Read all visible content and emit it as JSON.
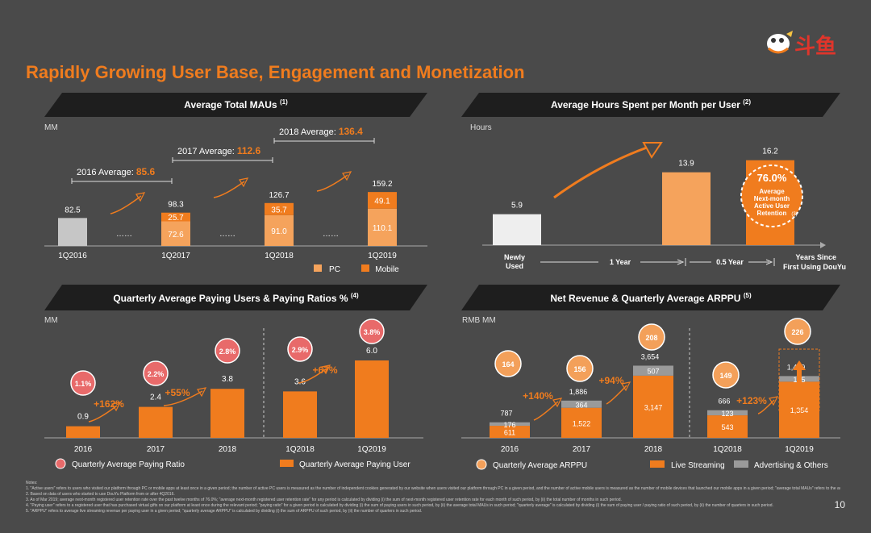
{
  "title": "Rapidly Growing User Base, Engagement and Monetization",
  "logo_text": "斗鱼",
  "page_number": "10",
  "colors": {
    "orange": "#f07c1e",
    "light_orange": "#f5a35c",
    "gray": "#c6c6c6",
    "red_circle": "#e86a6a",
    "bubble_orange": "#f3a05a"
  },
  "panels": {
    "mau": {
      "header": "Average Total MAUs",
      "note": "(1)",
      "unit": "MM"
    },
    "hours": {
      "header": "Average Hours Spent per Month per User",
      "note": "(2)",
      "unit": "Hours"
    },
    "paying": {
      "header": "Quarterly Average Paying Users & Paying Ratios %",
      "note": "(4)",
      "unit": "MM"
    },
    "revenue": {
      "header": "Net Revenue & Quarterly Average ARPPU",
      "note": "(5)",
      "unit": "RMB MM"
    }
  },
  "chart_data": [
    {
      "id": "mau",
      "type": "bar",
      "categories": [
        "1Q2016",
        "1Q2017",
        "1Q2018",
        "1Q2019"
      ],
      "totals": [
        "82.5",
        "98.3",
        "126.7",
        "159.2"
      ],
      "series": [
        {
          "name": "PC",
          "values": [
            82.5,
            72.6,
            91.0,
            110.1
          ],
          "labels": [
            "",
            "72.6",
            "91.0",
            "110.1"
          ]
        },
        {
          "name": "Mobile",
          "values": [
            0,
            25.7,
            35.7,
            49.1
          ],
          "labels": [
            "",
            "25.7",
            "35.7",
            "49.1"
          ]
        }
      ],
      "annotations": [
        {
          "text": "2016 Average: ",
          "value": "85.6"
        },
        {
          "text": "2017 Average: ",
          "value": "112.6"
        },
        {
          "text": "2018 Average: ",
          "value": "136.4"
        }
      ],
      "legend": [
        "PC",
        "Mobile"
      ],
      "dots": "……"
    },
    {
      "id": "hours",
      "type": "bar",
      "categories": [
        "Newly Used",
        "1 Year",
        "0.5 Year",
        "Years Since First Using DouYu"
      ],
      "values": [
        5.9,
        13.9,
        16.2
      ],
      "labels": [
        "5.9",
        "13.9",
        "16.2"
      ],
      "callout": {
        "value": "76.0%",
        "text": "Average Next-month Active User Retention",
        "note": "(3)"
      }
    },
    {
      "id": "paying",
      "type": "bar",
      "categories": [
        "2016",
        "2017",
        "2018",
        "1Q2018",
        "1Q2019"
      ],
      "values": [
        0.9,
        2.4,
        3.8,
        3.6,
        6.0
      ],
      "labels": [
        "0.9",
        "2.4",
        "3.8",
        "3.6",
        "6.0"
      ],
      "ratios": [
        "1.1%",
        "2.2%",
        "2.8%",
        "2.9%",
        "3.8%"
      ],
      "growth": [
        "+162%",
        "+55%",
        "+67%"
      ],
      "legend": [
        "Quarterly Average Paying Ratio",
        "Quarterly Average Paying User"
      ]
    },
    {
      "id": "revenue",
      "type": "bar",
      "categories": [
        "2016",
        "2017",
        "2018",
        "1Q2018",
        "1Q2019"
      ],
      "totals": [
        "787",
        "1,886",
        "3,654",
        "666",
        "1,489"
      ],
      "series": [
        {
          "name": "Live Streaming",
          "values": [
            611,
            1522,
            3147,
            543,
            1354
          ],
          "labels": [
            "611",
            "1,522",
            "3,147",
            "543",
            "1,354"
          ]
        },
        {
          "name": "Advertising & Others",
          "values": [
            176,
            364,
            507,
            123,
            135
          ],
          "labels": [
            "176",
            "364",
            "507",
            "123",
            "135"
          ]
        }
      ],
      "arppu": [
        "164",
        "156",
        "208",
        "149",
        "226"
      ],
      "growth": [
        "+140%",
        "+94%",
        "+123%"
      ],
      "legend": [
        "Quarterly Average ARPPU",
        "Live Streaming",
        "Advertising & Others"
      ]
    }
  ],
  "notes": {
    "label": "Notes:",
    "lines": [
      "1.  \"Active users\" refers to users who visited our platform through PC or mobile apps at least once in a given period; the number of active PC users is measured as the number of independent cookies generated by our website when users visited our platform through PC in a given period, and the number of active mobile users is measured as the number of mobile devices that launched our mobile apps in a given period; \"average total MAUs\" refers to the average total MAUs during a given period of time calculated by dividing (i) the sum of active users, including active PC users and active mobile users for each month of such period, by (ii) the number of months in such period.",
      "2.  Based on data of users who started to use DouYu Platform from or after 4Q2016.",
      "3.  As of Mar 2019; average next-month registered user retention rate over the past twelve months of 76.0%; \"average next-month registered user retention rate\" for any period is calculated by dividing (i) the sum of next-month registered user retention rate for each month of such period, by (ii) the total number of months in such period.",
      "4.  \"Paying user\" refers to a registered user that has purchased virtual gifts on our platform at least once during the relevant period; \"paying ratio\" for a given period is calculated by dividing (i) the sum of paying users in such period, by (ii) the average total MAUs in such period; \"quarterly average\" is calculated by dividing (i) the sum of paying user / paying ratio of such period, by (ii) the number of quarters in such period.",
      "5.  \"ARPPU\" refers to average live streaming revenue per paying user in a given period; \"quarterly average ARPPU\" is calculated by dividing (i) the sum of ARPPU of such period, by (ii) the number of quarters in such period."
    ]
  }
}
